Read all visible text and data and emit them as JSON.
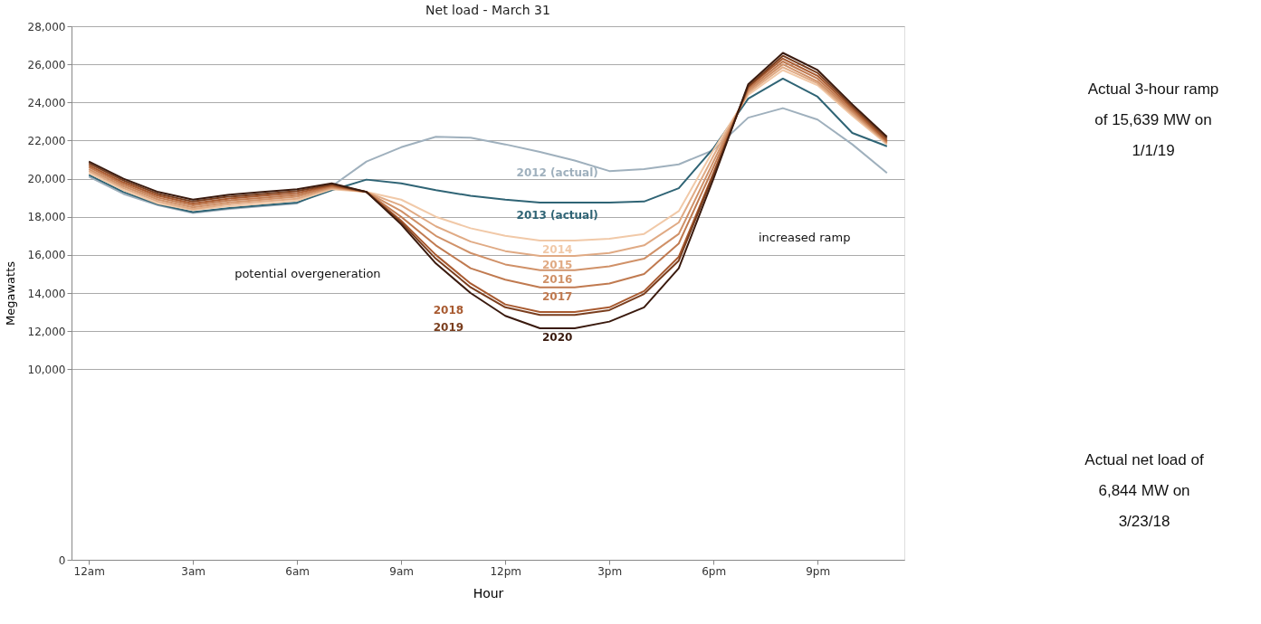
{
  "chart_data": {
    "type": "line",
    "title": "Net load - March 31",
    "xlabel": "Hour",
    "ylabel": "Megawatts",
    "categories": [
      "12am",
      null,
      null,
      "3am",
      null,
      null,
      "6am",
      null,
      null,
      "9am",
      null,
      null,
      "12pm",
      null,
      null,
      "3pm",
      null,
      null,
      "6pm",
      null,
      null,
      "9pm",
      null,
      null
    ],
    "ylim": [
      0,
      28000
    ],
    "yticks": [
      0,
      {
        "value": 10000,
        "label": "10,000"
      },
      {
        "value": 12000,
        "label": "12,000"
      },
      {
        "value": 14000,
        "label": "14,000"
      },
      {
        "value": 16000,
        "label": "16,000"
      },
      {
        "value": 18000,
        "label": "18,000"
      },
      {
        "value": 20000,
        "label": "20,000"
      },
      {
        "value": 22000,
        "label": "22,000"
      },
      {
        "value": 24000,
        "label": "24,000"
      },
      {
        "value": 26000,
        "label": "26,000"
      },
      {
        "value": 28000,
        "label": "28,000"
      }
    ],
    "grid": "y",
    "legend": false,
    "marker": "none",
    "line_style": "solid",
    "series": [
      {
        "name": "2012 (actual)",
        "color": "#9fb0bd",
        "values": [
          20100,
          19200,
          18600,
          18200,
          18400,
          18550,
          18700,
          19600,
          20900,
          21650,
          22200,
          22150,
          21800,
          21400,
          20950,
          20400,
          20500,
          20750,
          21500,
          23200,
          23700,
          23100,
          21800,
          20300
        ]
      },
      {
        "name": "2013 (actual)",
        "color": "#2f6475",
        "values": [
          20200,
          19300,
          18650,
          18250,
          18450,
          18600,
          18750,
          19400,
          19950,
          19750,
          19400,
          19100,
          18900,
          18750,
          18750,
          18750,
          18800,
          19500,
          21600,
          24200,
          25250,
          24300,
          22400,
          21700
        ]
      },
      {
        "name": "2014",
        "color": "#f1c9a8",
        "values": [
          20300,
          19400,
          18700,
          18350,
          18550,
          18700,
          18850,
          19450,
          19300,
          18900,
          18000,
          17400,
          17000,
          16750,
          16750,
          16850,
          17100,
          18300,
          21500,
          24400,
          25700,
          24900,
          23300,
          21800
        ]
      },
      {
        "name": "2015",
        "color": "#e0aa84",
        "values": [
          20400,
          19500,
          18800,
          18400,
          18650,
          18800,
          18950,
          19500,
          19300,
          18600,
          17500,
          16700,
          16200,
          15950,
          15950,
          16100,
          16500,
          17700,
          21200,
          24500,
          25850,
          25000,
          23400,
          21850
        ]
      },
      {
        "name": "2016",
        "color": "#d09168",
        "values": [
          20500,
          19600,
          18900,
          18500,
          18750,
          18900,
          19050,
          19550,
          19300,
          18300,
          17000,
          16100,
          15500,
          15200,
          15200,
          15400,
          15800,
          17100,
          20900,
          24600,
          26000,
          25100,
          23500,
          21900
        ]
      },
      {
        "name": "2017",
        "color": "#c07a50",
        "values": [
          20600,
          19700,
          19000,
          18600,
          18850,
          19000,
          19150,
          19600,
          19300,
          18000,
          16500,
          15300,
          14700,
          14300,
          14300,
          14500,
          15000,
          16600,
          20600,
          24700,
          26150,
          25250,
          23600,
          21950
        ]
      },
      {
        "name": "2018",
        "color": "#a85a30",
        "values": [
          20700,
          19800,
          19100,
          18700,
          18950,
          19100,
          19250,
          19650,
          19300,
          17800,
          16000,
          14500,
          13400,
          13000,
          13000,
          13250,
          14100,
          15900,
          20300,
          24800,
          26300,
          25400,
          23700,
          22000
        ]
      },
      {
        "name": "2019",
        "color": "#7a3e1e",
        "values": [
          20800,
          19900,
          19200,
          18800,
          19050,
          19200,
          19350,
          19700,
          19300,
          17700,
          15800,
          14300,
          13250,
          12850,
          12850,
          13100,
          13950,
          15700,
          20200,
          24850,
          26450,
          25550,
          23800,
          22100
        ]
      },
      {
        "name": "2020",
        "color": "#3a1a0e",
        "values": [
          20900,
          20000,
          19300,
          18900,
          19150,
          19300,
          19450,
          19750,
          19300,
          17600,
          15550,
          14000,
          12800,
          12150,
          12150,
          12500,
          13250,
          15300,
          20000,
          24950,
          26600,
          25700,
          23900,
          22200
        ]
      }
    ],
    "annotations": [
      "potential overgeneration",
      "increased ramp",
      "Actual 3-hour ramp of 15,639 MW on 1/1/19",
      "Actual net load of 6,844 MW on 3/23/18"
    ]
  }
}
